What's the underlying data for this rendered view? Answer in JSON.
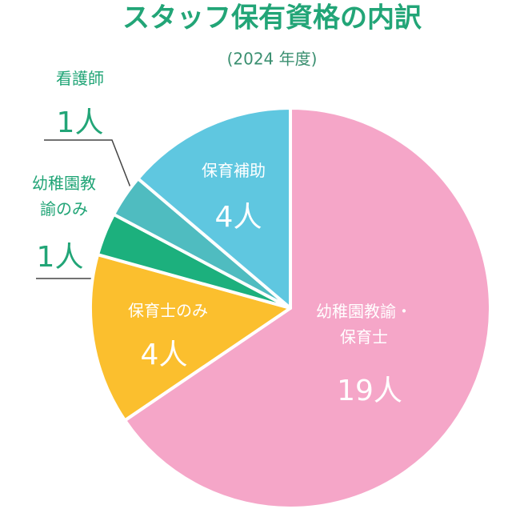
{
  "chart_data": {
    "type": "pie",
    "title": "スタッフ保有資格の内訳",
    "subtitle": "(2024 年度)",
    "categories": [
      "幼稚園教諭・保育士",
      "保育士のみ",
      "幼稚園教諭のみ",
      "看護師",
      "保育補助"
    ],
    "values": [
      19,
      4,
      1,
      1,
      4
    ],
    "value_labels": [
      "19人",
      "4人",
      "1人",
      "1人",
      "4人"
    ],
    "colors": [
      "#f5a6c8",
      "#fbbf2e",
      "#1cb07d",
      "#4fbcc0",
      "#5fc7e0"
    ]
  }
}
